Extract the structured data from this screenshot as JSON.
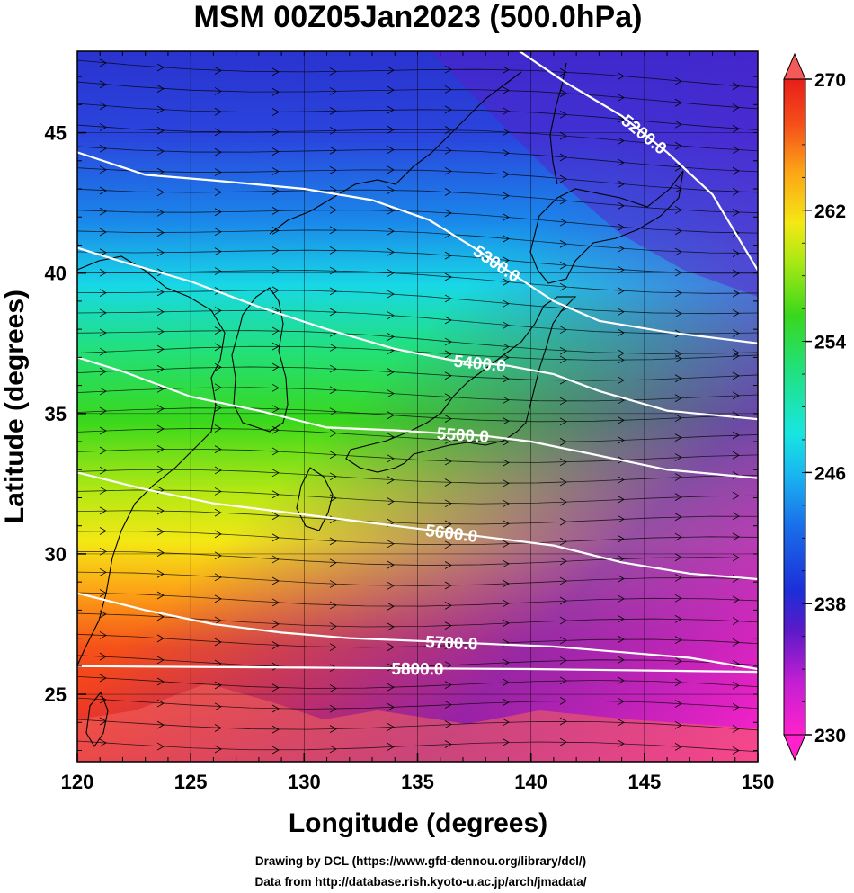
{
  "title": "MSM 00Z05Jan2023 (500.0hPa)",
  "x_axis": {
    "label": "Longitude (degrees)",
    "ticks": [
      "120",
      "125",
      "130",
      "135",
      "140",
      "145",
      "150"
    ],
    "range": [
      120,
      150
    ]
  },
  "y_axis": {
    "label": "Latitude  (degrees)",
    "ticks": [
      "25",
      "30",
      "35",
      "40",
      "45"
    ],
    "range": [
      22.6,
      47.9
    ]
  },
  "colorbar": {
    "ticks": [
      "230",
      "238",
      "246",
      "254",
      "262",
      "270"
    ],
    "range": [
      230,
      270
    ],
    "colors": [
      "#ff22cc",
      "#9a1ed6",
      "#3a19c9",
      "#1a48e6",
      "#19a0ee",
      "#18e6e0",
      "#22e07a",
      "#39d81c",
      "#a8e814",
      "#f4e814",
      "#fca316",
      "#f5501a",
      "#e81e19"
    ]
  },
  "contours": [
    {
      "label": "5200.0",
      "points": [
        [
          139.5,
          47.9
        ],
        [
          141.5,
          46.8
        ],
        [
          144,
          45.6
        ],
        [
          146,
          44.3
        ],
        [
          148,
          42.8
        ],
        [
          150,
          40.1
        ]
      ]
    },
    {
      "label": "5300.0",
      "points": [
        [
          120,
          44.3
        ],
        [
          123,
          43.5
        ],
        [
          126,
          43.3
        ],
        [
          130,
          43.0
        ],
        [
          133,
          42.6
        ],
        [
          135.5,
          41.9
        ],
        [
          137.5,
          40.9
        ],
        [
          139.5,
          39.8
        ],
        [
          141,
          39.0
        ],
        [
          143,
          38.3
        ],
        [
          146,
          37.9
        ],
        [
          150,
          37.5
        ]
      ]
    },
    {
      "label": "5400.0",
      "points": [
        [
          120,
          40.9
        ],
        [
          122,
          40.4
        ],
        [
          125,
          39.7
        ],
        [
          128,
          38.8
        ],
        [
          131,
          38.0
        ],
        [
          134,
          37.3
        ],
        [
          136.5,
          36.9
        ],
        [
          139,
          36.7
        ],
        [
          141,
          36.4
        ],
        [
          143,
          35.8
        ],
        [
          146,
          35.1
        ],
        [
          150,
          34.8
        ]
      ]
    },
    {
      "label": "5500.0",
      "points": [
        [
          120,
          37.0
        ],
        [
          122,
          36.5
        ],
        [
          125,
          35.6
        ],
        [
          128,
          35.1
        ],
        [
          131,
          34.5
        ],
        [
          134,
          34.4
        ],
        [
          136,
          34.3
        ],
        [
          138,
          34.2
        ],
        [
          140,
          34.0
        ],
        [
          143,
          33.5
        ],
        [
          146,
          33.0
        ],
        [
          150,
          32.7
        ]
      ]
    },
    {
      "label": "5600.0",
      "points": [
        [
          120,
          32.9
        ],
        [
          123,
          32.3
        ],
        [
          126,
          31.8
        ],
        [
          129,
          31.5
        ],
        [
          132,
          31.2
        ],
        [
          135,
          30.9
        ],
        [
          138,
          30.6
        ],
        [
          141,
          30.3
        ],
        [
          144,
          29.7
        ],
        [
          147,
          29.3
        ],
        [
          150,
          29.1
        ]
      ]
    },
    {
      "label": "5700.0",
      "points": [
        [
          120,
          28.6
        ],
        [
          123,
          28.0
        ],
        [
          126,
          27.5
        ],
        [
          129,
          27.2
        ],
        [
          132,
          27.0
        ],
        [
          135,
          26.9
        ],
        [
          138,
          26.8
        ],
        [
          141,
          26.7
        ],
        [
          144,
          26.5
        ],
        [
          147,
          26.3
        ],
        [
          150,
          25.9
        ]
      ]
    },
    {
      "label": "5800.0",
      "points": [
        [
          120,
          26.0
        ],
        [
          130,
          25.95
        ],
        [
          140,
          25.9
        ],
        [
          150,
          25.8
        ]
      ]
    }
  ],
  "credits": {
    "line1": "Drawing by DCL (https://www.gfd-dennou.org/library/dcl/)",
    "line2": "Data from http://database.rish.kyoto-u.ac.jp/arch/jmadata/"
  }
}
